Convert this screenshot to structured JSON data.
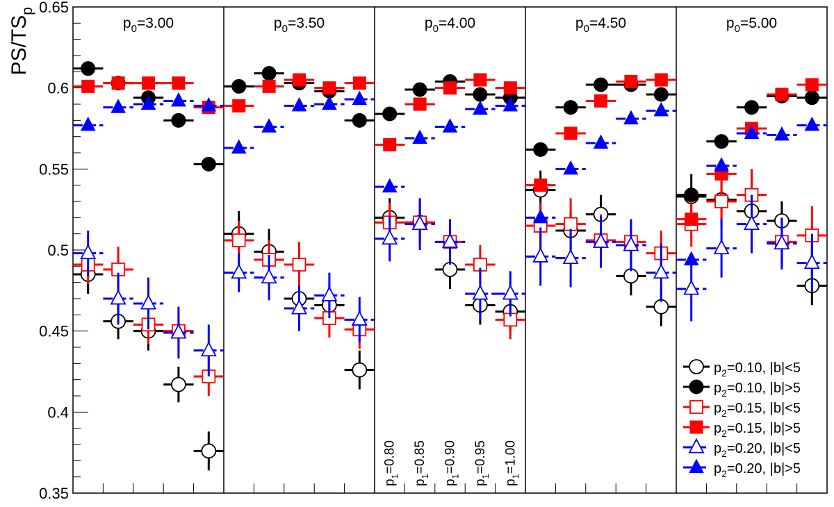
{
  "chart_data": {
    "type": "scatter",
    "ylabel": "PS/TS",
    "ylabel_sub": "p",
    "ylim": [
      0.35,
      0.65
    ],
    "y_ticks": [
      {
        "v": 0.35,
        "label": "0.35"
      },
      {
        "v": 0.4,
        "label": "0.4"
      },
      {
        "v": 0.45,
        "label": "0.45"
      },
      {
        "v": 0.5,
        "label": "0.5"
      },
      {
        "v": 0.55,
        "label": "0.55"
      },
      {
        "v": 0.6,
        "label": "0.6"
      },
      {
        "v": 0.65,
        "label": "0.65"
      }
    ],
    "p1_values": [
      "0.80",
      "0.85",
      "0.90",
      "0.95",
      "1.00"
    ],
    "p1_prefix": "p",
    "p1_sub": "1",
    "p0_prefix": "p",
    "p0_sub": "0",
    "panels": [
      "=3.00",
      "=3.50",
      "=4.00",
      "=4.50",
      "=5.00"
    ],
    "series": [
      {
        "key": "s1",
        "prefix": "p",
        "sub": "2",
        "label": "=0.10, |b|<5",
        "color": "#000000",
        "marker": "circle",
        "filled": false,
        "values": [
          [
            0.485,
            0.456,
            0.45,
            0.417,
            0.376
          ],
          [
            0.51,
            0.499,
            0.47,
            0.466,
            0.426
          ],
          [
            0.52,
            0.517,
            0.488,
            0.466,
            0.462
          ],
          [
            0.537,
            0.512,
            0.522,
            0.484,
            0.465
          ],
          [
            0.533,
            0.531,
            0.524,
            0.518,
            0.478
          ]
        ],
        "errors": [
          [
            0.012,
            0.011,
            0.012,
            0.011,
            0.012
          ],
          [
            0.014,
            0.014,
            0.012,
            0.012,
            0.012
          ],
          [
            0.012,
            0.012,
            0.012,
            0.012,
            0.012
          ],
          [
            0.012,
            0.012,
            0.012,
            0.012,
            0.012
          ],
          [
            0.014,
            0.012,
            0.012,
            0.012,
            0.012
          ]
        ]
      },
      {
        "key": "s2",
        "prefix": "p",
        "sub": "2",
        "label": "=0.10, |b|>5",
        "color": "#000000",
        "marker": "circle",
        "filled": true,
        "values": [
          [
            0.612,
            0.603,
            0.594,
            0.58,
            0.553
          ],
          [
            0.601,
            0.609,
            0.603,
            0.598,
            0.58
          ],
          [
            0.584,
            0.599,
            0.604,
            0.596,
            0.594
          ],
          [
            0.562,
            0.588,
            0.602,
            0.602,
            0.596
          ],
          [
            0.534,
            0.567,
            0.588,
            0.595,
            0.594
          ]
        ],
        "errors": [
          [
            0.003,
            0.003,
            0.003,
            0.003,
            0.003
          ],
          [
            0.003,
            0.003,
            0.003,
            0.003,
            0.003
          ],
          [
            0.003,
            0.003,
            0.003,
            0.003,
            0.003
          ],
          [
            0.003,
            0.003,
            0.003,
            0.003,
            0.003
          ],
          [
            0.004,
            0.003,
            0.003,
            0.003,
            0.003
          ]
        ]
      },
      {
        "key": "s3",
        "prefix": "p",
        "sub": "2",
        "label": "=0.15, |b|<5",
        "color": "#ff0000",
        "marker": "square",
        "filled": false,
        "values": [
          [
            0.491,
            0.488,
            0.454,
            0.45,
            0.422
          ],
          [
            0.506,
            0.494,
            0.491,
            0.458,
            0.451
          ],
          [
            0.517,
            0.517,
            0.505,
            0.491,
            0.457
          ],
          [
            0.515,
            0.516,
            0.506,
            0.505,
            0.498
          ],
          [
            0.516,
            0.53,
            0.534,
            0.505,
            0.509
          ]
        ],
        "errors": [
          [
            0.012,
            0.014,
            0.012,
            0.012,
            0.012
          ],
          [
            0.012,
            0.012,
            0.014,
            0.012,
            0.012
          ],
          [
            0.012,
            0.014,
            0.014,
            0.012,
            0.012
          ],
          [
            0.014,
            0.016,
            0.016,
            0.014,
            0.014
          ],
          [
            0.014,
            0.016,
            0.016,
            0.014,
            0.018
          ]
        ]
      },
      {
        "key": "s4",
        "prefix": "p",
        "sub": "2",
        "label": "=0.15, |b|>5",
        "color": "#ff0000",
        "marker": "square",
        "filled": true,
        "values": [
          [
            0.601,
            0.603,
            0.603,
            0.603,
            0.588
          ],
          [
            0.589,
            0.601,
            0.605,
            0.6,
            0.603
          ],
          [
            0.565,
            0.59,
            0.6,
            0.605,
            0.6
          ],
          [
            0.54,
            0.572,
            0.592,
            0.604,
            0.605
          ],
          [
            0.519,
            0.547,
            0.575,
            0.596,
            0.602
          ]
        ],
        "errors": [
          [
            0.003,
            0.003,
            0.003,
            0.003,
            0.003
          ],
          [
            0.003,
            0.003,
            0.003,
            0.003,
            0.003
          ],
          [
            0.003,
            0.003,
            0.003,
            0.003,
            0.003
          ],
          [
            0.003,
            0.003,
            0.003,
            0.003,
            0.003
          ],
          [
            0.004,
            0.003,
            0.003,
            0.003,
            0.003
          ]
        ]
      },
      {
        "key": "s5",
        "prefix": "p",
        "sub": "2",
        "label": "=0.20, |b|<5",
        "color": "#0000ff",
        "marker": "triangle",
        "filled": false,
        "values": [
          [
            0.498,
            0.47,
            0.467,
            0.449,
            0.438
          ],
          [
            0.486,
            0.483,
            0.464,
            0.472,
            0.457
          ],
          [
            0.507,
            0.516,
            0.505,
            0.473,
            0.473
          ],
          [
            0.496,
            0.495,
            0.505,
            0.503,
            0.486
          ],
          [
            0.476,
            0.501,
            0.516,
            0.504,
            0.492
          ]
        ],
        "errors": [
          [
            0.014,
            0.016,
            0.016,
            0.016,
            0.016
          ],
          [
            0.012,
            0.014,
            0.014,
            0.014,
            0.014
          ],
          [
            0.014,
            0.016,
            0.014,
            0.016,
            0.014
          ],
          [
            0.018,
            0.018,
            0.016,
            0.016,
            0.018
          ],
          [
            0.02,
            0.018,
            0.018,
            0.016,
            0.018
          ]
        ]
      },
      {
        "key": "s6",
        "prefix": "p",
        "sub": "2",
        "label": "=0.20, |b|>5",
        "color": "#0000ff",
        "marker": "triangle",
        "filled": true,
        "values": [
          [
            0.577,
            0.588,
            0.59,
            0.592,
            0.589
          ],
          [
            0.563,
            0.576,
            0.589,
            0.59,
            0.593
          ],
          [
            0.539,
            0.569,
            0.576,
            0.587,
            0.589
          ],
          [
            0.52,
            0.55,
            0.566,
            0.581,
            0.586
          ],
          [
            0.494,
            0.552,
            0.572,
            0.571,
            0.577
          ]
        ],
        "errors": [
          [
            0.003,
            0.003,
            0.003,
            0.003,
            0.003
          ],
          [
            0.003,
            0.003,
            0.003,
            0.003,
            0.003
          ],
          [
            0.003,
            0.003,
            0.003,
            0.003,
            0.003
          ],
          [
            0.003,
            0.003,
            0.003,
            0.003,
            0.003
          ],
          [
            0.004,
            0.003,
            0.003,
            0.003,
            0.003
          ]
        ]
      }
    ],
    "legend_position": "bottom-right"
  }
}
